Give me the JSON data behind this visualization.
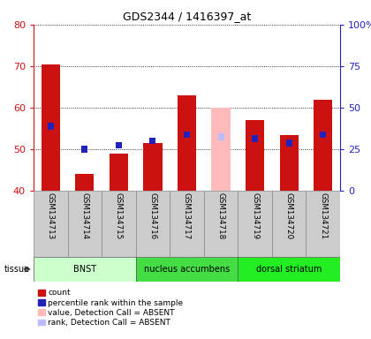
{
  "title": "GDS2344 / 1416397_at",
  "samples": [
    "GSM134713",
    "GSM134714",
    "GSM134715",
    "GSM134716",
    "GSM134717",
    "GSM134718",
    "GSM134719",
    "GSM134720",
    "GSM134721"
  ],
  "count_values": [
    70.5,
    44.0,
    49.0,
    51.5,
    63.0,
    null,
    57.0,
    53.5,
    62.0
  ],
  "rank_values": [
    55.5,
    50.0,
    51.0,
    52.0,
    53.5,
    null,
    52.5,
    51.5,
    53.5
  ],
  "absent_count": [
    null,
    null,
    null,
    null,
    null,
    60.0,
    null,
    null,
    null
  ],
  "absent_rank": [
    null,
    null,
    null,
    null,
    null,
    53.0,
    null,
    null,
    null
  ],
  "tissue_groups": [
    {
      "label": "BNST",
      "indices": [
        0,
        1,
        2
      ],
      "color": "#ccffcc"
    },
    {
      "label": "nucleus accumbens",
      "indices": [
        3,
        4,
        5
      ],
      "color": "#44dd44"
    },
    {
      "label": "dorsal striatum",
      "indices": [
        6,
        7,
        8
      ],
      "color": "#22ee22"
    }
  ],
  "ylim_left": [
    40,
    80
  ],
  "ylim_right": [
    0,
    100
  ],
  "yticks_left": [
    40,
    50,
    60,
    70,
    80
  ],
  "yticks_right": [
    0,
    25,
    50,
    75,
    100
  ],
  "yticklabels_right": [
    "0",
    "25",
    "50",
    "75",
    "100%"
  ],
  "bar_color_count": "#cc1111",
  "bar_color_rank": "#2222bb",
  "bar_color_absent_count": "#ffbbbb",
  "bar_color_absent_rank": "#bbbbff",
  "bg_color": "#ffffff",
  "tick_color_left": "#cc1111",
  "tick_color_right": "#2222bb",
  "sample_box_color": "#cccccc",
  "legend_items": [
    {
      "color": "#cc1111",
      "label": "count"
    },
    {
      "color": "#2222bb",
      "label": "percentile rank within the sample"
    },
    {
      "color": "#ffbbbb",
      "label": "value, Detection Call = ABSENT"
    },
    {
      "color": "#bbbbff",
      "label": "rank, Detection Call = ABSENT"
    }
  ]
}
